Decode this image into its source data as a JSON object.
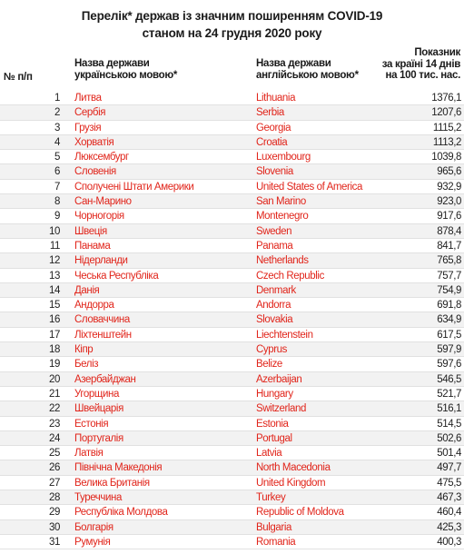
{
  "title": {
    "line1": "Перелік* держав із значним поширенням COVID-19",
    "line2": "станом на 24 грудня 2020 року"
  },
  "header": {
    "num": "№ п/п",
    "ua_line1": "Назва держави",
    "ua_line2": "українською мовою*",
    "en_line1": "Назва держави",
    "en_line2": "англійською мовою*",
    "val_line1": "Показник",
    "val_line2": "за країні 14 днів",
    "val_line3": "на 100 тис. нас."
  },
  "rows": [
    {
      "n": "1",
      "ua": "Литва",
      "en": "Lithuania",
      "v": "1376,1"
    },
    {
      "n": "2",
      "ua": "Сербія",
      "en": "Serbia",
      "v": "1207,6"
    },
    {
      "n": "3",
      "ua": "Грузія",
      "en": "Georgia",
      "v": "1115,2"
    },
    {
      "n": "4",
      "ua": "Хорватія",
      "en": "Croatia",
      "v": "1113,2"
    },
    {
      "n": "5",
      "ua": "Люксембург",
      "en": "Luxembourg",
      "v": "1039,8"
    },
    {
      "n": "6",
      "ua": "Словенія",
      "en": "Slovenia",
      "v": "965,6"
    },
    {
      "n": "7",
      "ua": "Сполучені Штати Америки",
      "en": "United States of America",
      "v": "932,9"
    },
    {
      "n": "8",
      "ua": "Сан-Марино",
      "en": "San Marino",
      "v": "923,0"
    },
    {
      "n": "9",
      "ua": "Чорногорія",
      "en": "Montenegro",
      "v": "917,6"
    },
    {
      "n": "10",
      "ua": "Швеція",
      "en": "Sweden",
      "v": "878,4"
    },
    {
      "n": "11",
      "ua": "Панама",
      "en": "Panama",
      "v": "841,7"
    },
    {
      "n": "12",
      "ua": "Нідерланди",
      "en": "Netherlands",
      "v": "765,8"
    },
    {
      "n": "13",
      "ua": "Чеська Республіка",
      "en": "Czech Republic",
      "v": "757,7"
    },
    {
      "n": "14",
      "ua": "Данія",
      "en": "Denmark",
      "v": "754,9"
    },
    {
      "n": "15",
      "ua": "Андорра",
      "en": "Andorra",
      "v": "691,8"
    },
    {
      "n": "16",
      "ua": "Словаччина",
      "en": "Slovakia",
      "v": "634,9"
    },
    {
      "n": "17",
      "ua": "Ліхтенштейн",
      "en": "Liechtenstein",
      "v": "617,5"
    },
    {
      "n": "18",
      "ua": "Кіпр",
      "en": "Cyprus",
      "v": "597,9"
    },
    {
      "n": "19",
      "ua": "Беліз",
      "en": "Belize",
      "v": "597,6"
    },
    {
      "n": "20",
      "ua": "Азербайджан",
      "en": "Azerbaijan",
      "v": "546,5"
    },
    {
      "n": "21",
      "ua": "Угорщина",
      "en": "Hungary",
      "v": "521,7"
    },
    {
      "n": "22",
      "ua": "Швейцарія",
      "en": "Switzerland",
      "v": "516,1"
    },
    {
      "n": "23",
      "ua": "Естонія",
      "en": "Estonia",
      "v": "514,5"
    },
    {
      "n": "24",
      "ua": "Португалія",
      "en": "Portugal",
      "v": "502,6"
    },
    {
      "n": "25",
      "ua": "Латвія",
      "en": "Latvia",
      "v": "501,4"
    },
    {
      "n": "26",
      "ua": "Північна Македонія",
      "en": "North Macedonia",
      "v": "497,7"
    },
    {
      "n": "27",
      "ua": "Велика Британія",
      "en": "United Kingdom",
      "v": "475,5"
    },
    {
      "n": "28",
      "ua": "Туреччина",
      "en": "Turkey",
      "v": "467,3"
    },
    {
      "n": "29",
      "ua": "Республіка Молдова",
      "en": "Republic of Moldova",
      "v": "460,4"
    },
    {
      "n": "30",
      "ua": "Болгарія",
      "en": "Bulgaria",
      "v": "425,3"
    },
    {
      "n": "31",
      "ua": "Румунія",
      "en": "Romania",
      "v": "400,3"
    }
  ],
  "colors": {
    "country_text": "#e1251b",
    "alt_row": "#f2f2f2"
  }
}
